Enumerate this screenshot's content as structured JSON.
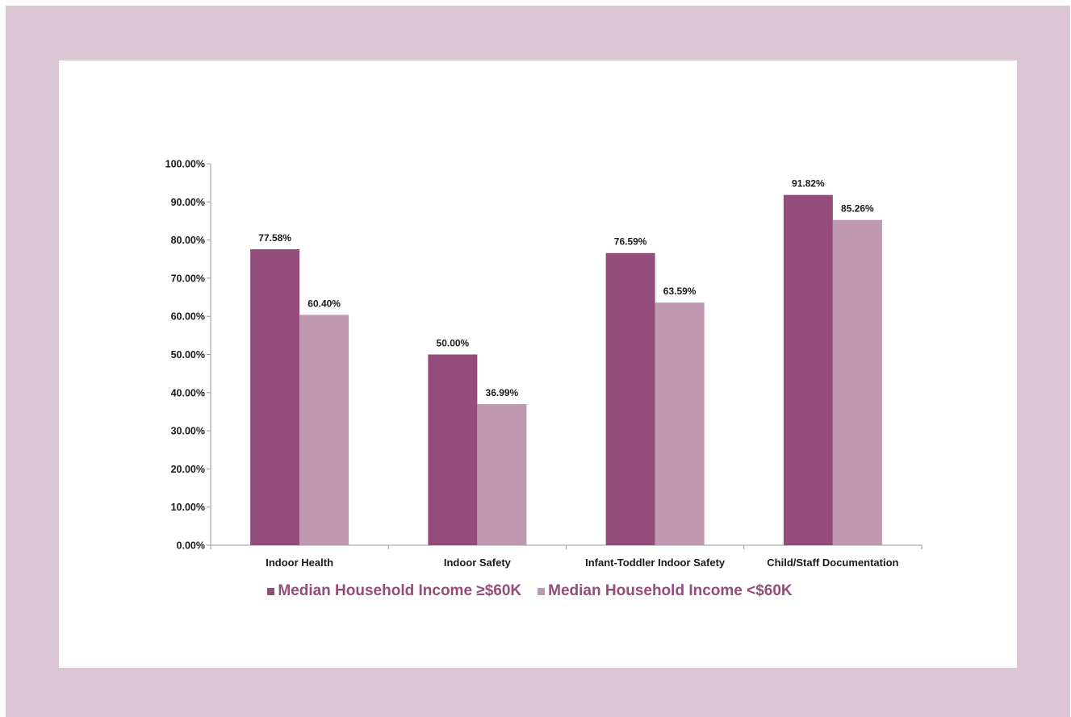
{
  "chart_data": {
    "type": "bar",
    "categories": [
      "Indoor Health",
      "Indoor Safety",
      "Infant-Toddler Indoor Safety",
      "Child/Staff Documentation"
    ],
    "series": [
      {
        "name": "Median Household Income ≥$60K",
        "values": [
          77.58,
          50.0,
          76.59,
          91.82
        ],
        "color": "#944c7b"
      },
      {
        "name": "Median Household Income <$60K",
        "values": [
          60.4,
          36.99,
          63.59,
          85.26
        ],
        "color": "#bf98b1"
      }
    ],
    "data_labels": [
      [
        "77.58%",
        "50.00%",
        "76.59%",
        "91.82%"
      ],
      [
        "60.40%",
        "36.99%",
        "63.59%",
        "85.26%"
      ]
    ],
    "yticks": [
      "0.00%",
      "10.00%",
      "20.00%",
      "30.00%",
      "40.00%",
      "50.00%",
      "60.00%",
      "70.00%",
      "80.00%",
      "90.00%",
      "100.00%"
    ],
    "ylim": [
      0,
      100
    ],
    "legend_position": "bottom",
    "grid": false
  },
  "colors": {
    "frame": "#dbc6d3",
    "panel": "#ffffff",
    "legend_text": "#944c7b"
  }
}
